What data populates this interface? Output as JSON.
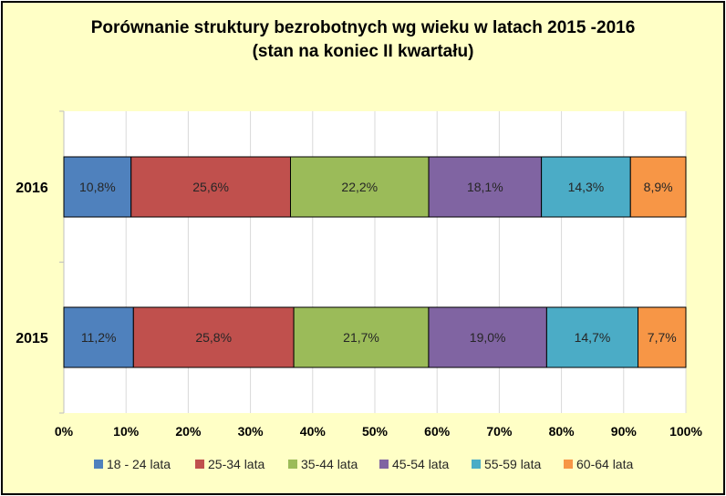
{
  "chart_data": {
    "type": "bar",
    "orientation": "horizontal-stacked-100",
    "title_line1": "Porównanie struktury bezrobotnych wg wieku w latach 2015 -2016",
    "title_line2": "(stan na koniec II kwartału)",
    "categories": [
      "2016",
      "2015"
    ],
    "series": [
      {
        "name": "18 - 24 lata",
        "color": "#4f81bd",
        "values": [
          10.8,
          11.2
        ],
        "labels": [
          "10,8%",
          "11,2%"
        ]
      },
      {
        "name": "25-34 lata",
        "color": "#c0504d",
        "values": [
          25.6,
          25.8
        ],
        "labels": [
          "25,6%",
          "25,8%"
        ]
      },
      {
        "name": "35-44 lata",
        "color": "#9bbb59",
        "values": [
          22.2,
          21.7
        ],
        "labels": [
          "22,2%",
          "21,7%"
        ]
      },
      {
        "name": "45-54 lata",
        "color": "#8064a2",
        "values": [
          18.1,
          19.0
        ],
        "labels": [
          "18,1%",
          "19,0%"
        ]
      },
      {
        "name": "55-59 lata",
        "color": "#4bacc6",
        "values": [
          14.3,
          14.7
        ],
        "labels": [
          "14,3%",
          "14,7%"
        ]
      },
      {
        "name": "60-64 lata",
        "color": "#f79646",
        "values": [
          8.9,
          7.7
        ],
        "labels": [
          "8,9%",
          "7,7%"
        ]
      }
    ],
    "x_ticks": [
      "0%",
      "10%",
      "20%",
      "30%",
      "40%",
      "50%",
      "60%",
      "70%",
      "80%",
      "90%",
      "100%"
    ],
    "xlim": [
      0,
      100
    ],
    "grid": true,
    "legend_position": "bottom",
    "plot_background": "#ffffff",
    "chart_background": "#ffffc6"
  }
}
